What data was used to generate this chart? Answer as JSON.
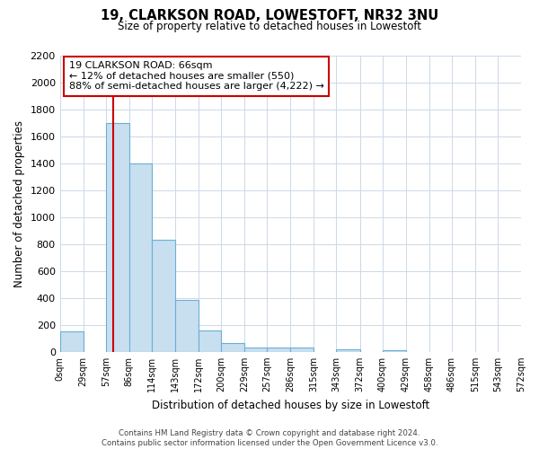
{
  "title_line1": "19, CLARKSON ROAD, LOWESTOFT, NR32 3NU",
  "title_line2": "Size of property relative to detached houses in Lowestoft",
  "xlabel": "Distribution of detached houses by size in Lowestoft",
  "ylabel": "Number of detached properties",
  "bin_edges": [
    0,
    29,
    57,
    86,
    114,
    143,
    172,
    200,
    229,
    257,
    286,
    315,
    343,
    372,
    400,
    429,
    458,
    486,
    515,
    543,
    572
  ],
  "bar_heights": [
    155,
    0,
    1700,
    1400,
    830,
    385,
    160,
    65,
    35,
    30,
    30,
    0,
    20,
    0,
    15,
    0,
    0,
    0,
    0,
    0
  ],
  "bar_color": "#c8dff0",
  "bar_edge_color": "#6aafd6",
  "xlim": [
    0,
    572
  ],
  "ylim": [
    0,
    2200
  ],
  "yticks": [
    0,
    200,
    400,
    600,
    800,
    1000,
    1200,
    1400,
    1600,
    1800,
    2000,
    2200
  ],
  "xtick_labels": [
    "0sqm",
    "29sqm",
    "57sqm",
    "86sqm",
    "114sqm",
    "143sqm",
    "172sqm",
    "200sqm",
    "229sqm",
    "257sqm",
    "286sqm",
    "315sqm",
    "343sqm",
    "372sqm",
    "400sqm",
    "429sqm",
    "458sqm",
    "486sqm",
    "515sqm",
    "543sqm",
    "572sqm"
  ],
  "xtick_positions": [
    0,
    29,
    57,
    86,
    114,
    143,
    172,
    200,
    229,
    257,
    286,
    315,
    343,
    372,
    400,
    429,
    458,
    486,
    515,
    543,
    572
  ],
  "property_size": 66,
  "vline_color": "#cc0000",
  "annotation_title": "19 CLARKSON ROAD: 66sqm",
  "annotation_line1": "← 12% of detached houses are smaller (550)",
  "annotation_line2": "88% of semi-detached houses are larger (4,222) →",
  "footer_line1": "Contains HM Land Registry data © Crown copyright and database right 2024.",
  "footer_line2": "Contains public sector information licensed under the Open Government Licence v3.0.",
  "bg_color": "#ffffff",
  "grid_color": "#ccd8e8",
  "ann_box_facecolor": "#ffffff",
  "ann_box_edgecolor": "#cc0000"
}
